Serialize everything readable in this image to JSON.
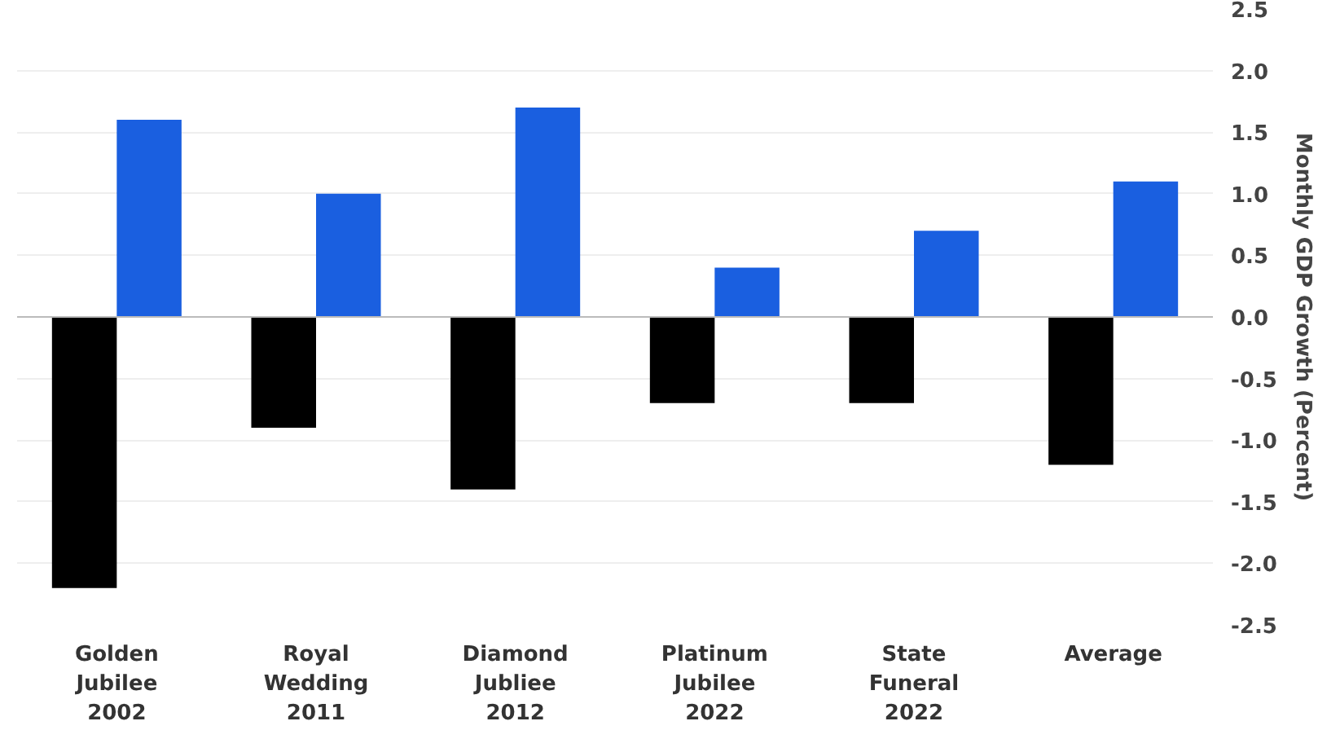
{
  "chart_data": {
    "type": "bar",
    "categories": [
      "Golden Jubilee 2002",
      "Royal Wedding 2011",
      "Diamond Jubliee 2012",
      "Platinum Jubilee 2022",
      "State Funeral 2022",
      "Average"
    ],
    "series": [
      {
        "color": "#000000",
        "values": [
          -2.2,
          -0.9,
          -1.4,
          -0.7,
          -0.7,
          -1.2
        ]
      },
      {
        "color": "#1a5fe0",
        "values": [
          1.6,
          1.0,
          1.7,
          0.4,
          0.7,
          1.1
        ]
      }
    ],
    "ylabel": "Monthly GDP Growth (Percent)",
    "ylim": [
      -2.5,
      2.5
    ],
    "yticks": [
      {
        "value": -2.5,
        "label": "-2.5"
      },
      {
        "value": -2.0,
        "label": "-2.0"
      },
      {
        "value": -1.5,
        "label": "-1.5"
      },
      {
        "value": -1.0,
        "label": "-1.0"
      },
      {
        "value": -0.5,
        "label": "-0.5"
      },
      {
        "value": 0,
        "label": "0.0"
      },
      {
        "value": 0.5,
        "label": "0.5"
      },
      {
        "value": 1.0,
        "label": "1.0"
      },
      {
        "value": 1.5,
        "label": "1.5"
      },
      {
        "value": 2.0,
        "label": "2.0"
      },
      {
        "value": 2.5,
        "label": "2.5"
      }
    ],
    "grid": "y"
  }
}
